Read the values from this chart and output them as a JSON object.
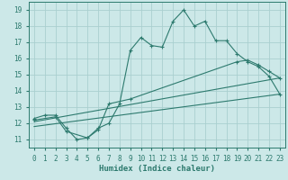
{
  "xlabel": "Humidex (Indice chaleur)",
  "bg_color": "#cce8e8",
  "grid_color": "#aacfcf",
  "line_color": "#2d7a6e",
  "xlim": [
    -0.5,
    23.5
  ],
  "ylim": [
    10.5,
    19.5
  ],
  "xticks": [
    0,
    1,
    2,
    3,
    4,
    5,
    6,
    7,
    8,
    9,
    10,
    11,
    12,
    13,
    14,
    15,
    16,
    17,
    18,
    19,
    20,
    21,
    22,
    23
  ],
  "yticks": [
    11,
    12,
    13,
    14,
    15,
    16,
    17,
    18,
    19
  ],
  "line1_x": [
    0,
    1,
    2,
    3,
    4,
    5,
    6,
    7,
    8,
    9,
    10,
    11,
    12,
    13,
    14,
    15,
    16,
    17,
    18,
    19,
    20,
    21,
    22,
    23
  ],
  "line1_y": [
    12.3,
    12.5,
    12.5,
    11.7,
    11.0,
    11.1,
    11.7,
    12.0,
    13.2,
    16.5,
    17.3,
    16.8,
    16.7,
    18.3,
    19.0,
    18.0,
    18.3,
    17.1,
    17.1,
    16.3,
    15.8,
    15.5,
    14.9,
    13.8
  ],
  "line2_x": [
    0,
    2,
    3,
    5,
    6,
    7,
    9,
    19,
    20,
    21,
    22,
    23
  ],
  "line2_y": [
    12.2,
    12.4,
    11.5,
    11.1,
    11.6,
    13.2,
    13.5,
    15.8,
    15.9,
    15.6,
    15.2,
    14.8
  ],
  "line3_x": [
    0,
    23
  ],
  "line3_y": [
    12.1,
    14.8
  ],
  "line4_x": [
    0,
    23
  ],
  "line4_y": [
    11.8,
    13.8
  ]
}
